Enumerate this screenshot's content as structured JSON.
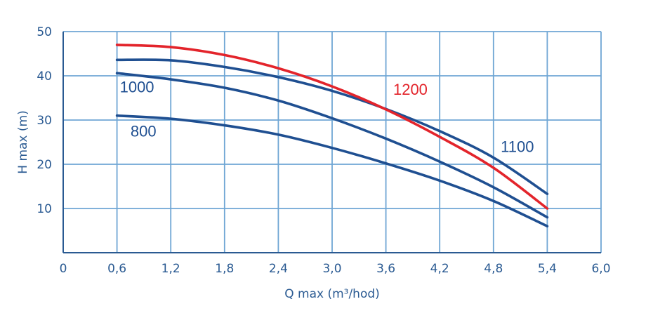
{
  "chart_data": {
    "type": "line",
    "xlabel": "Q max (m³/hod)",
    "ylabel": "H max (m)",
    "xlim": [
      0,
      6.0
    ],
    "ylim": [
      0,
      50
    ],
    "x_ticks": [
      "0",
      "0,6",
      "1,2",
      "1,8",
      "2,4",
      "3,0",
      "3,6",
      "4,2",
      "4,8",
      "5,4",
      "6,0"
    ],
    "y_ticks": [
      "10",
      "20",
      "30",
      "40",
      "50"
    ],
    "grid": true,
    "colors": {
      "grid": "#6fa6d4",
      "axis": "#2a5a92",
      "blue": "#1f4f91",
      "red": "#e3242b"
    },
    "series": [
      {
        "name": "800",
        "color": "#1f4f91",
        "points": [
          [
            0.6,
            31
          ],
          [
            1.2,
            30.3
          ],
          [
            1.8,
            28.8
          ],
          [
            2.4,
            26.7
          ],
          [
            3.0,
            23.7
          ],
          [
            3.6,
            20.2
          ],
          [
            4.2,
            16.3
          ],
          [
            4.8,
            11.7
          ],
          [
            5.4,
            6
          ]
        ]
      },
      {
        "name": "1000",
        "color": "#1f4f91",
        "points": [
          [
            0.6,
            40.6
          ],
          [
            1.2,
            39.2
          ],
          [
            1.8,
            37.3
          ],
          [
            2.4,
            34.4
          ],
          [
            3.0,
            30.4
          ],
          [
            3.6,
            25.8
          ],
          [
            4.2,
            20.6
          ],
          [
            4.8,
            14.8
          ],
          [
            5.4,
            8
          ]
        ]
      },
      {
        "name": "1100",
        "color": "#1f4f91",
        "points": [
          [
            0.6,
            43.6
          ],
          [
            1.2,
            43.5
          ],
          [
            1.8,
            42
          ],
          [
            2.4,
            39.7
          ],
          [
            3.0,
            36.6
          ],
          [
            3.6,
            32.5
          ],
          [
            4.2,
            27.5
          ],
          [
            4.8,
            21.5
          ],
          [
            5.4,
            13.3
          ]
        ]
      },
      {
        "name": "1200",
        "color": "#e3242b",
        "points": [
          [
            0.6,
            47
          ],
          [
            1.2,
            46.5
          ],
          [
            1.8,
            44.7
          ],
          [
            2.4,
            41.7
          ],
          [
            3.0,
            37.6
          ],
          [
            3.6,
            32.4
          ],
          [
            4.2,
            26.2
          ],
          [
            4.8,
            19.2
          ],
          [
            5.4,
            10
          ]
        ]
      }
    ],
    "series_labels": [
      {
        "text": "1000",
        "color": "#1f4f91",
        "x": 0.6,
        "y": 36.3
      },
      {
        "text": "800",
        "color": "#1f4f91",
        "x": 0.72,
        "y": 26.3
      },
      {
        "text": "1200",
        "color": "#e3242b",
        "x": 3.65,
        "y": 35.7
      },
      {
        "text": "1100",
        "color": "#1f4f91",
        "x": 4.85,
        "y": 22.8
      }
    ]
  }
}
